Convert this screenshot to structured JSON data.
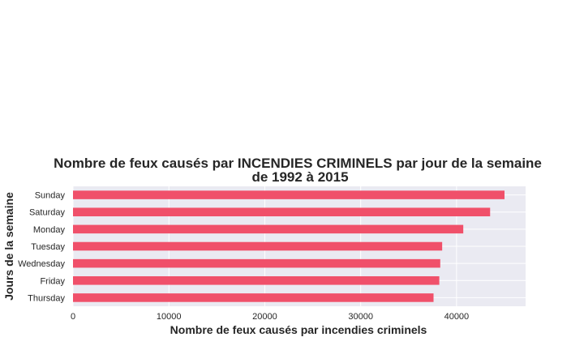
{
  "chart_data": {
    "type": "bar",
    "orientation": "horizontal",
    "title_lines": [
      "Nombre de feux causés par INCENDIES CRIMINELS par jour de la semaine",
      "de 1992 à 2015"
    ],
    "xlabel": "Nombre de feux causés par incendies criminels",
    "ylabel": "Jours de la semaine",
    "categories": [
      "Sunday",
      "Saturday",
      "Monday",
      "Tuesday",
      "Wednesday",
      "Friday",
      "Thursday"
    ],
    "values": [
      45000,
      43500,
      40700,
      38500,
      38300,
      38200,
      37600
    ],
    "xlim": [
      0,
      47200
    ],
    "xticks": [
      0,
      10000,
      20000,
      30000,
      40000
    ],
    "xtick_labels": [
      "0",
      "10000",
      "20000",
      "30000",
      "40000"
    ],
    "grid": true,
    "bar_color": "#f0506a",
    "background_color": "#eaeaf2"
  }
}
